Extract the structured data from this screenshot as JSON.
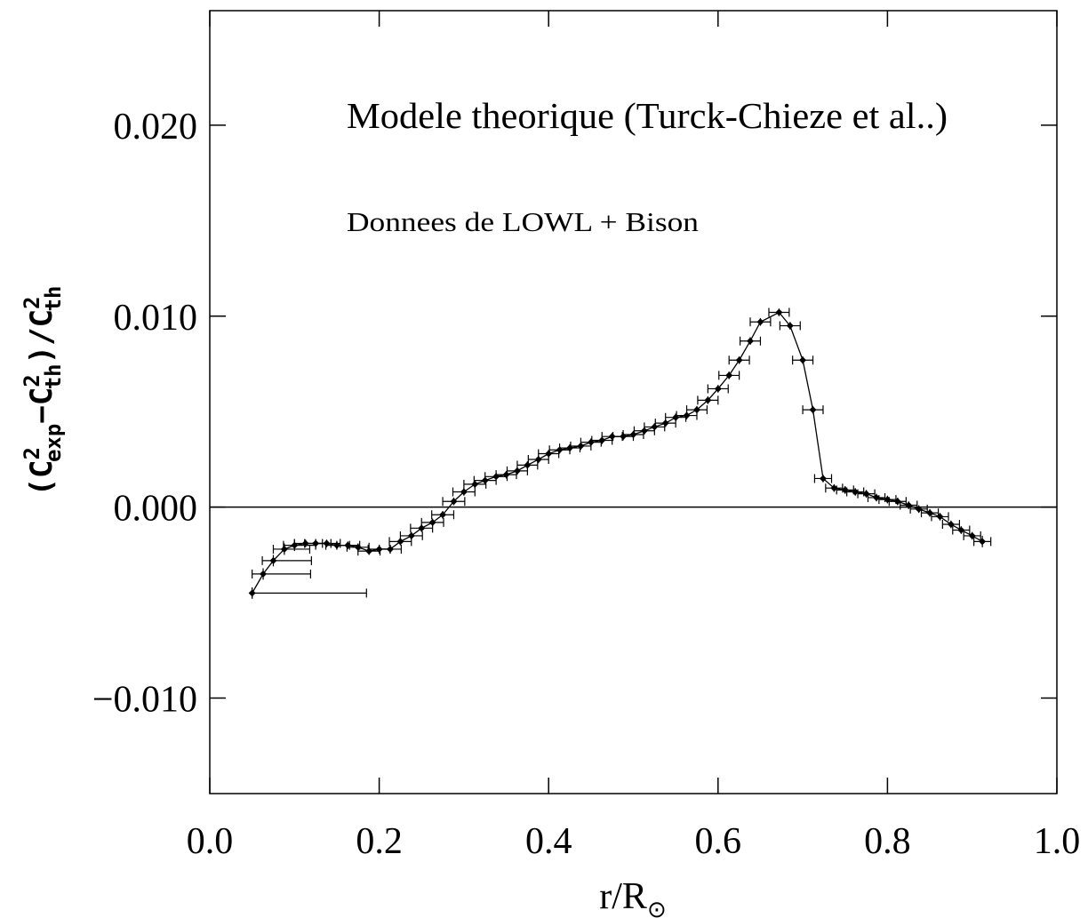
{
  "chart_data": {
    "type": "scatter",
    "annotations": [
      "Modele theorique (Turck-Chieze et al..)",
      "Donnees de LOWL + Bison"
    ],
    "xlabel": [
      "r/R",
      "⊙"
    ],
    "ylabel": [
      "(C",
      "2",
      "exp",
      "−C",
      "2",
      "th",
      ")/C",
      "2",
      "th"
    ],
    "xlim": [
      0,
      1
    ],
    "ylim": [
      -0.015,
      0.026
    ],
    "xticks": [
      {
        "value": 0,
        "label": "0.0"
      },
      0.2,
      0.4,
      0.6,
      0.8,
      {
        "value": 1,
        "label": "1.0"
      }
    ],
    "yticks": [
      {
        "value": -0.01,
        "label": "−0.010"
      },
      {
        "value": 0,
        "label": "0.000"
      },
      {
        "value": 0.01,
        "label": "0.010"
      },
      {
        "value": 0.02,
        "label": "0.020"
      }
    ],
    "hline": 0,
    "x": [
      0.05,
      0.063,
      0.075,
      0.088,
      0.1,
      0.113,
      0.125,
      0.138,
      0.15,
      0.163,
      0.175,
      0.188,
      0.2,
      0.213,
      0.225,
      0.238,
      0.25,
      0.263,
      0.275,
      0.288,
      0.3,
      0.313,
      0.325,
      0.338,
      0.35,
      0.363,
      0.375,
      0.388,
      0.4,
      0.413,
      0.425,
      0.438,
      0.45,
      0.463,
      0.475,
      0.488,
      0.5,
      0.513,
      0.525,
      0.538,
      0.55,
      0.563,
      0.575,
      0.588,
      0.6,
      0.613,
      0.625,
      0.638,
      0.65,
      0.672,
      0.685,
      0.7,
      0.712,
      0.724,
      0.737,
      0.75,
      0.762,
      0.775,
      0.787,
      0.8,
      0.812,
      0.825,
      0.837,
      0.85,
      0.862,
      0.875,
      0.887,
      0.9,
      0.912
    ],
    "series": [
      {
        "color": "#000000",
        "values": [
          -0.0045,
          -0.0035,
          -0.0028,
          -0.0022,
          -0.002,
          -0.0019,
          -0.0019,
          -0.0019,
          -0.002,
          -0.002,
          -0.0021,
          -0.0023,
          -0.0022,
          -0.0022,
          -0.0018,
          -0.0015,
          -0.0011,
          -0.0008,
          -0.0004,
          0.0003,
          0.0008,
          0.0012,
          0.0014,
          0.0016,
          0.0017,
          0.0019,
          0.0022,
          0.0025,
          0.0028,
          0.003,
          0.0031,
          0.0032,
          0.0034,
          0.0035,
          0.0037,
          0.0037,
          0.0038,
          0.004,
          0.0042,
          0.0044,
          0.0047,
          0.0048,
          0.0051,
          0.0056,
          0.0062,
          0.0069,
          0.0077,
          0.0087,
          0.0097,
          0.0102,
          0.0095,
          0.0077,
          0.0051,
          0.0015,
          0.001,
          0.0009,
          0.0008,
          0.0007,
          0.0005,
          0.0004,
          0.0003,
          0.0001,
          -0.0001,
          -0.0003,
          -0.0005,
          -0.0009,
          -0.0012,
          -0.0015,
          -0.0018
        ],
        "xerr_minus": [
          0,
          0.013,
          0.013,
          0.013,
          0.013,
          0.013,
          0.013,
          0.013,
          0.013,
          0.013,
          0.013,
          0.013,
          0.013,
          0.013,
          0.013,
          0.013,
          0.013,
          0.013,
          0.013,
          0.013,
          0.013,
          0.013,
          0.013,
          0.013,
          0.012,
          0.012,
          0.012,
          0.012,
          0.012,
          0.012,
          0.012,
          0.012,
          0.012,
          0.012,
          0.012,
          0.012,
          0.012,
          0.012,
          0.012,
          0.012,
          0.012,
          0.012,
          0.012,
          0.012,
          0.012,
          0.012,
          0.012,
          0.012,
          0.012,
          0.012,
          0.012,
          0.012,
          0.012,
          0.01,
          0.01,
          0.01,
          0.01,
          0.01,
          0.01,
          0.01,
          0.01,
          0.01,
          0.01,
          0.01,
          0.01,
          0.01,
          0.01,
          0.01,
          0.01
        ],
        "xerr_plus": [
          0.135,
          0.056,
          0.045,
          0.03,
          0.025,
          0.02,
          0.018,
          0.016,
          0.015,
          0.014,
          0.013,
          0.013,
          0.013,
          0.013,
          0.013,
          0.013,
          0.013,
          0.013,
          0.013,
          0.013,
          0.013,
          0.013,
          0.013,
          0.013,
          0.012,
          0.012,
          0.012,
          0.012,
          0.012,
          0.012,
          0.012,
          0.012,
          0.012,
          0.012,
          0.012,
          0.012,
          0.012,
          0.012,
          0.012,
          0.012,
          0.012,
          0.012,
          0.012,
          0.012,
          0.012,
          0.012,
          0.012,
          0.012,
          0.012,
          0.012,
          0.012,
          0.012,
          0.012,
          0.01,
          0.01,
          0.01,
          0.01,
          0.01,
          0.01,
          0.01,
          0.01,
          0.01,
          0.01,
          0.01,
          0.01,
          0.01,
          0.01,
          0.01,
          0.01
        ],
        "yerr": [
          0.0003,
          0.0003,
          0.0003,
          0.0003,
          0.0003,
          0.0002,
          0.0002,
          0.0002,
          0.0002,
          0.0002,
          0.0002,
          0.0002,
          0.0002,
          0.0002,
          0.0002,
          0.0002,
          0.0002,
          0.0002,
          0.0002,
          0.0002,
          0.0002,
          0.0002,
          0.0002,
          0.0002,
          0.0002,
          0.0002,
          0.0002,
          0.0002,
          0.0002,
          0.0002,
          0.0002,
          0.0002,
          0.0002,
          0.0002,
          0.0002,
          0.0002,
          0.0002,
          0.0002,
          0.0002,
          0.0002,
          0.0002,
          0.0002,
          0.0002,
          0.0002,
          0.0002,
          0.0002,
          0.0002,
          0.0002,
          0.0002,
          0.0002,
          0.0002,
          0.0002,
          0.0002,
          0.0002,
          0.0002,
          0.0002,
          0.0002,
          0.0002,
          0.0002,
          0.0002,
          0.0002,
          0.0002,
          0.0002,
          0.0002,
          0.0002,
          0.0002,
          0.0002,
          0.0002,
          0.0003
        ]
      }
    ]
  }
}
